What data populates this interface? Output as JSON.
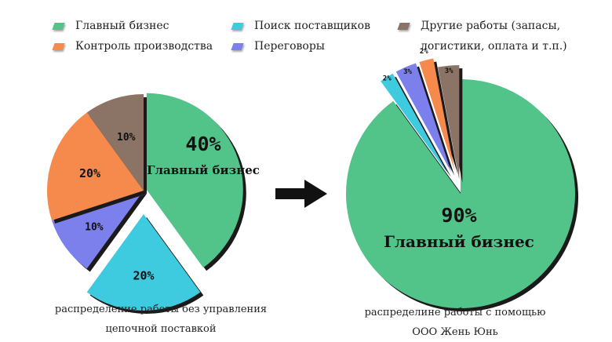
{
  "legend": [
    {
      "label": "Главный бизнес",
      "color": "#52c489"
    },
    {
      "label": "Контроль производства",
      "color": "#f58a4c"
    },
    {
      "label": "Поиск поставщиков",
      "color": "#3ecbe0"
    },
    {
      "label": "Переговоры",
      "color": "#7b80ec"
    },
    {
      "label": "Другие работы (запасы,\nлогистики, оплата и т.п.)",
      "color": "#8b7365"
    }
  ],
  "arrow_color": "#111111",
  "chart_data": [
    {
      "type": "pie",
      "slices": [
        {
          "label": "Главный бизнес",
          "value": 40,
          "display": "40%",
          "color": "#52c489",
          "exploded": true
        },
        {
          "label": "Поиск поставщиков",
          "value": 20,
          "display": "20%",
          "color": "#3ecbe0",
          "exploded": true
        },
        {
          "label": "Переговоры",
          "value": 10,
          "display": "10%",
          "color": "#7b80ec",
          "exploded": false
        },
        {
          "label": "Контроль производства",
          "value": 20,
          "display": "20%",
          "color": "#f58a4c",
          "exploded": false
        },
        {
          "label": "Другие работы",
          "value": 10,
          "display": "10%",
          "color": "#8b7365",
          "exploded": false
        }
      ],
      "center_label": {
        "value": "40%",
        "text": "Главный бизнес"
      },
      "caption": "распределение работы без управления\nцепочной поставкой"
    },
    {
      "type": "pie",
      "slices": [
        {
          "label": "Главный бизнес",
          "value": 90,
          "display": "90%",
          "color": "#52c489",
          "exploded": false
        },
        {
          "label": "Поиск поставщиков",
          "value": 2,
          "display": "2%",
          "color": "#3ecbe0",
          "exploded": true
        },
        {
          "label": "Переговоры",
          "value": 3,
          "display": "3%",
          "color": "#7b80ec",
          "exploded": true
        },
        {
          "label": "Контроль производства",
          "value": 2,
          "display": "2%",
          "color": "#f58a4c",
          "exploded": true
        },
        {
          "label": "Другие работы",
          "value": 3,
          "display": "3%",
          "color": "#8b7365",
          "exploded": true
        }
      ],
      "center_label": {
        "value": "90%",
        "text": "Главный бизнес"
      },
      "caption": "распределине работы с помощью\nООО Жень Юнь"
    }
  ]
}
